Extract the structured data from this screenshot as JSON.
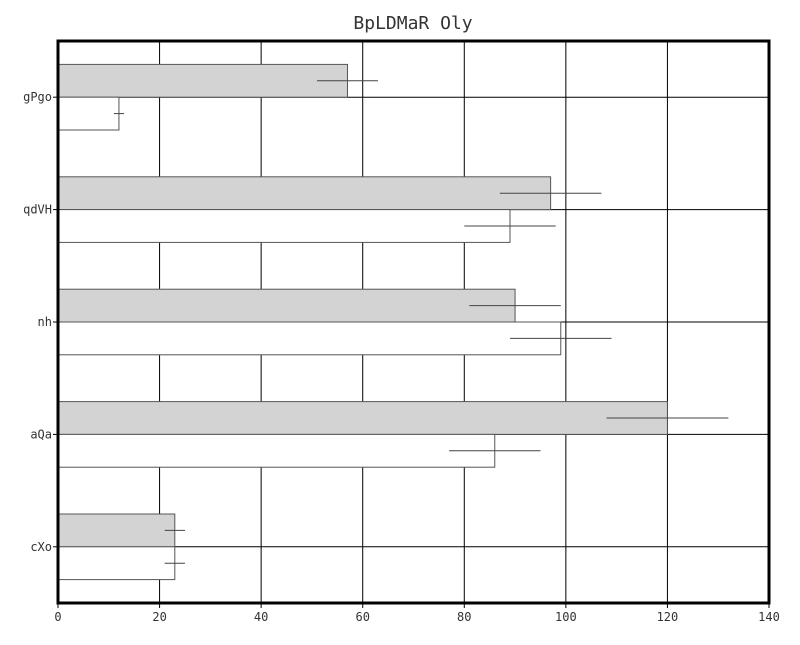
{
  "chart_data": {
    "type": "bar",
    "orientation": "horizontal",
    "title": "BpLDMaR Oly",
    "xlabel": "",
    "ylabel": "",
    "xlim": [
      0,
      140
    ],
    "x_ticks": [
      0,
      20,
      40,
      60,
      80,
      100,
      120,
      140
    ],
    "grid": true,
    "legend": "none",
    "categories": [
      "gPgo",
      "qdVH",
      "nh",
      "aQa",
      "cXo"
    ],
    "series": [
      {
        "color": "#d3d3d3",
        "values": [
          57,
          97,
          90,
          120,
          23
        ],
        "errors": [
          6,
          10,
          9,
          12,
          2
        ]
      },
      {
        "color": "#ffffff",
        "values": [
          12,
          89,
          99,
          86,
          23
        ],
        "errors": [
          1,
          9,
          10,
          9,
          2
        ]
      }
    ]
  }
}
